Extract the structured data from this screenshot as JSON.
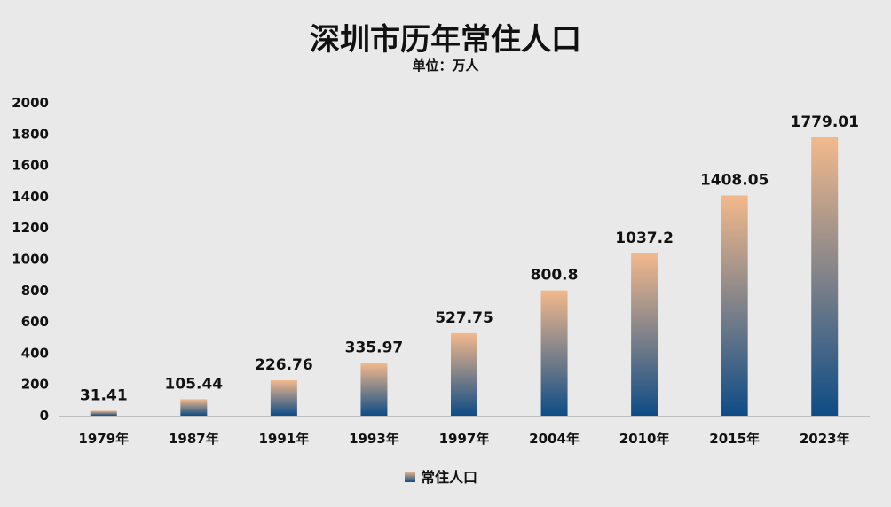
{
  "chart_data": {
    "type": "bar",
    "title": "深圳市历年常住人口",
    "subtitle": "单位：万人",
    "categories": [
      "1979年",
      "1987年",
      "1991年",
      "1993年",
      "1997年",
      "2004年",
      "2010年",
      "2015年",
      "2023年"
    ],
    "series": [
      {
        "name": "常住人口",
        "values": [
          31.41,
          105.44,
          226.76,
          335.97,
          527.75,
          800.8,
          1037.2,
          1408.05,
          1779.01
        ],
        "data_labels": [
          "31.41",
          "105.44",
          "226.76",
          "335.97",
          "527.75",
          "800.8",
          "1037.2",
          "1408.05",
          "1779.01"
        ]
      }
    ],
    "ylim": [
      0,
      2000
    ],
    "yticks": [
      0,
      200,
      400,
      600,
      800,
      1000,
      1200,
      1400,
      1600,
      1800,
      2000
    ],
    "grid": false,
    "legend_position": "bottom",
    "colors": {
      "bar_top": "#f3b98c",
      "bar_bottom": "#0e4c86",
      "background": "#e9e9e9",
      "axis": "#bfbfbf"
    }
  }
}
